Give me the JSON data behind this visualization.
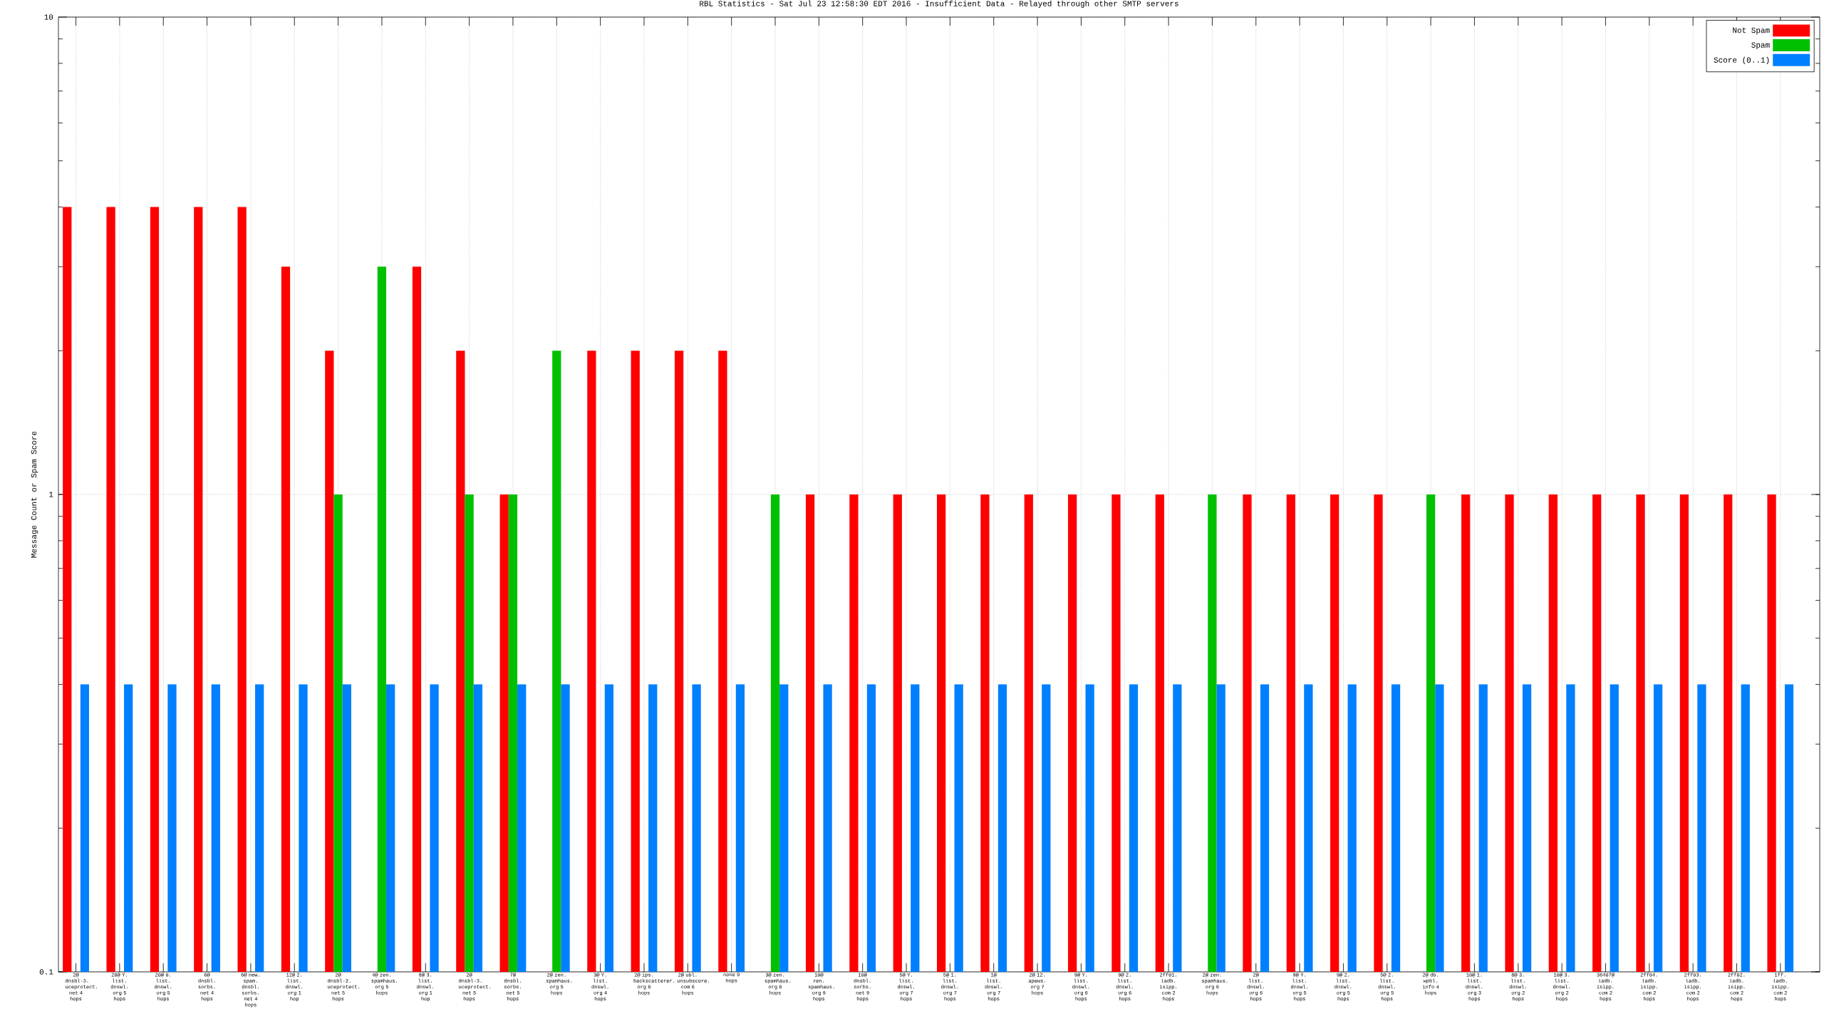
{
  "chart_data": {
    "type": "bar",
    "title": "RBL Statistics - Sat Jul 23 12:58:30 EDT 2016 - Insufficient Data - Relayed through other SMTP servers",
    "ylabel": "Message Count or Spam Score",
    "categories": [
      "2@ dnsbl-3. uceprotect. net 4 hops",
      "20@ Y. list. dnswl. org 5 hops",
      "20@ 0. list. dnswl. org 5 hops",
      "6@ dnsbl. sorbs. net 4 hops",
      "6@ new. spam. dnsbl. sorbs. net 4 hops",
      "12@ 2. list. dnswl. org 1 hop",
      "2@ dnsbl-2. uceprotect. net 5 hops",
      "4@ zen. spamhaus. org 5 hops",
      "8@ 3. list. dnswl. org 1 hop",
      "2@ dnsbl-3. uceprotect. net 5 hops",
      "7@ dnsbl. sorbs. net 5 hops",
      "2@ zen. spamhaus. org 5 hops",
      "3@ Y. list. dnswl. org 4 hops",
      "2@ ips. backscatterer. org 6 hops",
      "2@ ubl. unsubscore. com 6 hops",
      "none 9 hops",
      "3@ zen. spamhaus. org 6 hops",
      "10@ zen. spamhaus. org 9 hops",
      "10@ dnsbl. sorbs. net 9 hops",
      "5@ Y. list. dnswl. org 7 hops",
      "5@ 1. list. dnswl. org 7 hops",
      "1@ list. dnswl. org 7 hops",
      "2@ 12. apews. org 7 hops",
      "9@ Y. list. dnswl. org 6 hops",
      "9@ 2. list. dnswl. org 6 hops",
      "2ff01. iadb. isipp. com 2 hops",
      "2@ zen. spamhaus. org 6 hops",
      "2@ list. dnswl. org 6 hops",
      "9@ Y. list. dnswl. org 5 hops",
      "9@ 2. list. dnswl. org 5 hops",
      "5@ 2. list. dnswl. org 5 hops",
      "2@ db. wpbl. info 4 hops",
      "10@ 1. list. dnswl. org 3 hops",
      "8@ 3. list. dnswl. org 2 hops",
      "10@ 3. list. dnswl. org 2 hops",
      "36407@ iadb. isipp. com 2 hops",
      "2ff04. iadb. isipp. com 2 hops",
      "2ff03. iadb. isipp. com 2 hops",
      "2ff02. iadb. isipp. com 2 hops",
      "1ff. iadb. isipp. com 2 hops"
    ],
    "series": [
      {
        "name": "Not Spam",
        "color": "#ff0000",
        "values": [
          4,
          4,
          4,
          4,
          4,
          3,
          2,
          null,
          3,
          2,
          1,
          null,
          2,
          2,
          2,
          2,
          null,
          1,
          1,
          1,
          1,
          1,
          1,
          1,
          1,
          1,
          null,
          1,
          1,
          1,
          1,
          null,
          1,
          1,
          1,
          1,
          1,
          1,
          1,
          1
        ]
      },
      {
        "name": "Spam",
        "color": "#00c000",
        "values": [
          null,
          null,
          null,
          null,
          null,
          null,
          1,
          3,
          null,
          1,
          1,
          2,
          null,
          null,
          null,
          null,
          1,
          null,
          null,
          null,
          null,
          null,
          null,
          null,
          null,
          null,
          1,
          null,
          null,
          null,
          null,
          1,
          null,
          null,
          null,
          null,
          null,
          null,
          null,
          null
        ]
      },
      {
        "name": "Score (0..1)",
        "color": "#0080ff",
        "values": [
          0.4,
          0.4,
          0.4,
          0.4,
          0.4,
          0.4,
          0.4,
          0.4,
          0.4,
          0.4,
          0.4,
          0.4,
          0.4,
          0.4,
          0.4,
          0.4,
          0.4,
          0.4,
          0.4,
          0.4,
          0.4,
          0.4,
          0.4,
          0.4,
          0.4,
          0.4,
          0.4,
          0.4,
          0.4,
          0.4,
          0.4,
          0.4,
          0.4,
          0.4,
          0.4,
          0.4,
          0.4,
          0.4,
          0.4,
          0.4
        ]
      }
    ],
    "ylim": [
      0.1,
      10
    ],
    "yticks": [
      0.1,
      1,
      10
    ],
    "log": "y",
    "grid": true,
    "legend": "top right"
  }
}
